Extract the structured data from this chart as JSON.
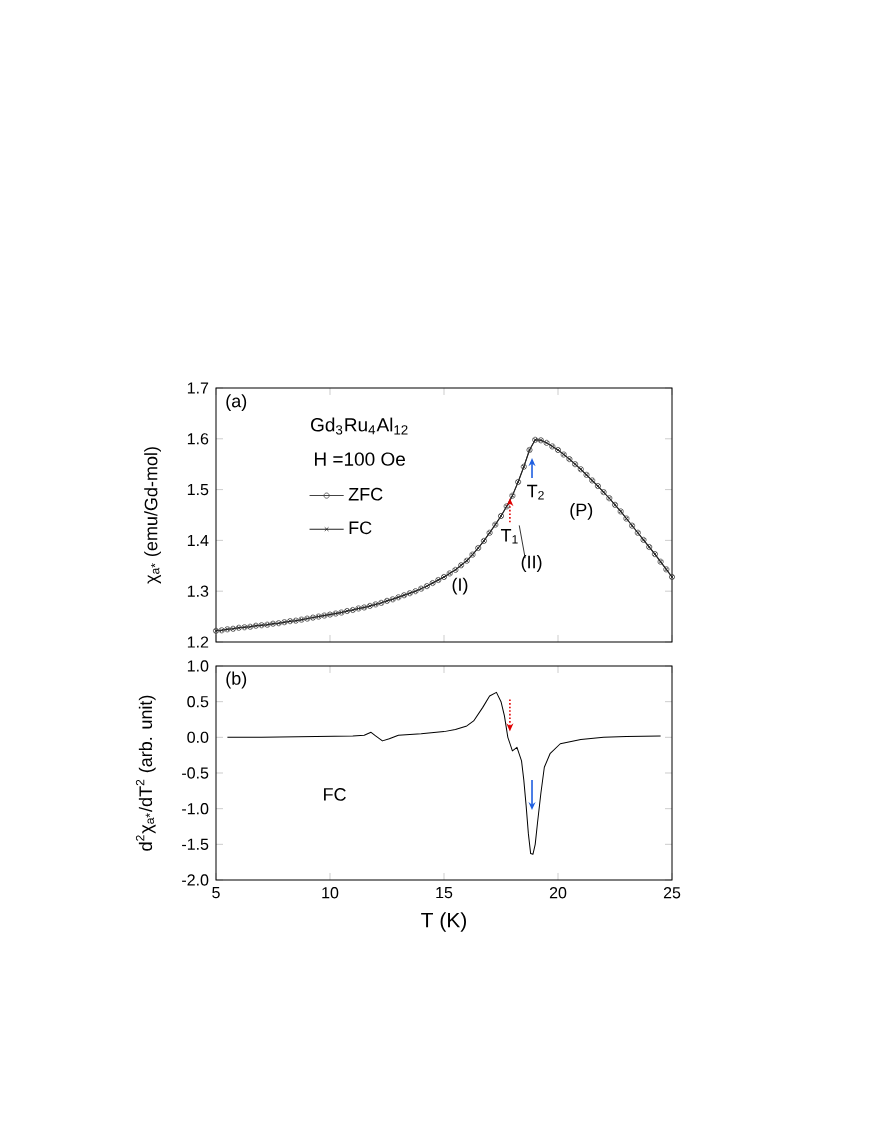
{
  "chart_data": [
    {
      "type": "line",
      "ylabel": "χ$_{a*}$ (emu/Gd-mol)",
      "xlim": [
        5,
        25
      ],
      "ylim": [
        1.2,
        1.7
      ],
      "xticks": [
        5,
        10,
        15,
        20,
        25
      ],
      "yticks": [
        1.2,
        1.3,
        1.4,
        1.5,
        1.6,
        1.7
      ],
      "tick_labels": "y",
      "legend": "top left",
      "annotations": [
        "(a)",
        "Gd$_{3}$Ru$_{4}$Al$_{12}$",
        "H =100 Oe",
        {
          "text": "T$_{1}$",
          "x": 17.89,
          "y": 1.483
        },
        {
          "text": "T$_{2}$",
          "x": 18.86,
          "y": 1.562
        },
        "(II)",
        "(I)",
        "(P)"
      ],
      "x": [
        5,
        5.25,
        5.5,
        5.75,
        6,
        6.25,
        6.5,
        6.75,
        7,
        7.25,
        7.5,
        7.75,
        8,
        8.25,
        8.5,
        8.75,
        9,
        9.25,
        9.5,
        9.75,
        10,
        10.25,
        10.5,
        10.75,
        11,
        11.25,
        11.5,
        11.75,
        12,
        12.25,
        12.5,
        12.75,
        13,
        13.25,
        13.5,
        13.75,
        14,
        14.25,
        14.5,
        14.75,
        15,
        15.25,
        15.5,
        15.75,
        16,
        16.25,
        16.5,
        16.75,
        17,
        17.25,
        17.5,
        17.75,
        18,
        18.25,
        18.5,
        18.75,
        19,
        19.25,
        19.5,
        19.75,
        20,
        20.25,
        20.5,
        20.75,
        21,
        21.25,
        21.5,
        21.75,
        22,
        22.25,
        22.5,
        22.75,
        23,
        23.25,
        23.5,
        23.75,
        24,
        24.25,
        24.5,
        24.75,
        25
      ],
      "series": [
        {
          "name": "ZFC",
          "color": "#444444",
          "marker": "circle",
          "values": [
            1.222,
            1.223,
            1.225,
            1.226,
            1.228,
            1.229,
            1.23,
            1.232,
            1.233,
            1.234,
            1.236,
            1.237,
            1.239,
            1.241,
            1.242,
            1.244,
            1.246,
            1.248,
            1.25,
            1.252,
            1.254,
            1.256,
            1.258,
            1.261,
            1.263,
            1.266,
            1.268,
            1.271,
            1.274,
            1.277,
            1.281,
            1.284,
            1.288,
            1.292,
            1.296,
            1.3,
            1.305,
            1.31,
            1.316,
            1.322,
            1.328,
            1.335,
            1.342,
            1.351,
            1.36,
            1.372,
            1.385,
            1.399,
            1.415,
            1.431,
            1.448,
            1.467,
            1.488,
            1.515,
            1.545,
            1.578,
            1.598,
            1.597,
            1.592,
            1.585,
            1.578,
            1.569,
            1.56,
            1.55,
            1.54,
            1.529,
            1.518,
            1.507,
            1.495,
            1.483,
            1.47,
            1.457,
            1.443,
            1.429,
            1.415,
            1.401,
            1.387,
            1.373,
            1.358,
            1.343,
            1.328
          ]
        },
        {
          "name": "FC",
          "color": "#222222",
          "marker": "cross",
          "values": [
            1.222,
            1.223,
            1.225,
            1.226,
            1.228,
            1.229,
            1.23,
            1.232,
            1.233,
            1.234,
            1.236,
            1.237,
            1.239,
            1.241,
            1.242,
            1.244,
            1.246,
            1.248,
            1.25,
            1.252,
            1.254,
            1.256,
            1.258,
            1.261,
            1.263,
            1.266,
            1.268,
            1.271,
            1.274,
            1.277,
            1.281,
            1.284,
            1.288,
            1.292,
            1.296,
            1.3,
            1.305,
            1.31,
            1.316,
            1.322,
            1.328,
            1.335,
            1.342,
            1.351,
            1.36,
            1.372,
            1.385,
            1.399,
            1.415,
            1.431,
            1.448,
            1.467,
            1.488,
            1.515,
            1.545,
            1.578,
            1.598,
            1.597,
            1.592,
            1.585,
            1.578,
            1.569,
            1.56,
            1.55,
            1.54,
            1.529,
            1.518,
            1.507,
            1.495,
            1.483,
            1.47,
            1.457,
            1.443,
            1.429,
            1.415,
            1.401,
            1.387,
            1.373,
            1.358,
            1.343,
            1.328
          ]
        }
      ]
    },
    {
      "type": "line",
      "xlabel": "T (K)",
      "ylabel": "d$^{2}$χ$_{a*}$/dT$^{2}$ (arb. unit)",
      "xlim": [
        5,
        25
      ],
      "ylim": [
        -2.0,
        1.0
      ],
      "xticks": [
        5,
        10,
        15,
        20,
        25
      ],
      "yticks": [
        {
          "value": -2.0,
          "label": "-2.0"
        },
        {
          "value": -1.5,
          "label": "-1.5"
        },
        {
          "value": -1.0,
          "label": "-1.0"
        },
        {
          "value": -0.5,
          "label": "-0.5"
        },
        {
          "value": 0.0,
          "label": "0.0"
        },
        {
          "value": 0.5,
          "label": "0.5"
        },
        {
          "value": 1.0,
          "label": "1.0"
        }
      ],
      "legend": false,
      "annotations": [
        "(b)"
      ],
      "series": [
        {
          "name": "FC",
          "color": "#000000",
          "x": [
            5.5,
            7,
            9,
            11,
            11.5,
            11.8,
            12.0,
            12.3,
            12.6,
            13,
            14,
            15,
            15.5,
            16,
            16.3,
            16.7,
            17,
            17.3,
            17.5,
            17.65,
            17.8,
            18.0,
            18.2,
            18.4,
            18.5,
            18.6,
            18.7,
            18.8,
            18.9,
            19.0,
            19.1,
            19.25,
            19.4,
            19.65,
            20.1,
            21,
            22,
            23,
            24.5
          ],
          "values": [
            0.0,
            0.0,
            0.01,
            0.02,
            0.03,
            0.07,
            0.02,
            -0.05,
            -0.02,
            0.03,
            0.05,
            0.08,
            0.11,
            0.16,
            0.23,
            0.42,
            0.58,
            0.63,
            0.5,
            0.3,
            0.0,
            -0.19,
            -0.14,
            -0.33,
            -0.6,
            -0.95,
            -1.35,
            -1.63,
            -1.64,
            -1.5,
            -1.2,
            -0.78,
            -0.42,
            -0.23,
            -0.09,
            -0.03,
            0.0,
            0.01,
            0.02
          ]
        }
      ]
    }
  ]
}
